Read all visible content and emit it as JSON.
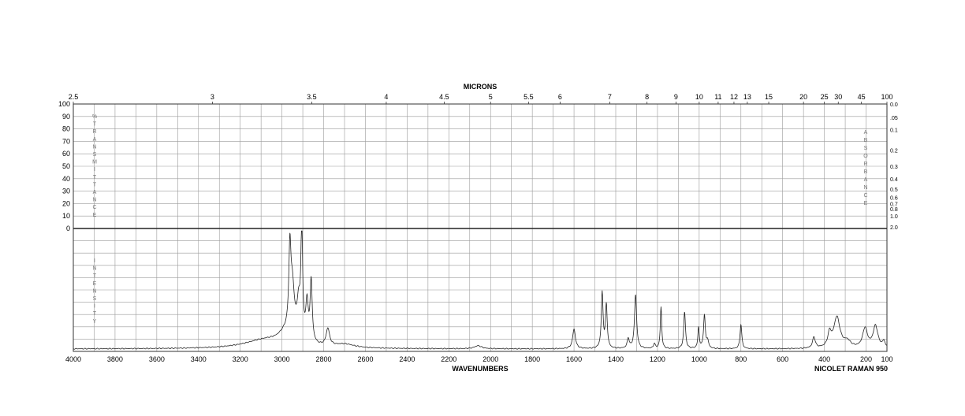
{
  "chart_data": {
    "type": "line",
    "title": "",
    "top_axis_label": "MICRONS",
    "xlabel": "WAVENUMBERS",
    "instrument_label": "NICOLET RAMAN 950",
    "left_axis_top_label": "%TRANSMITTANCE",
    "left_axis_bottom_label": "INTENSITY",
    "right_axis_label": "ABSORBANCE",
    "xlim": [
      4000,
      100
    ],
    "x_ticks": [
      4000,
      3800,
      3600,
      3400,
      3200,
      3000,
      2800,
      2600,
      2400,
      2200,
      2000,
      1800,
      1600,
      1400,
      1200,
      1000,
      800,
      600,
      400,
      200,
      100
    ],
    "micron_ticks": [
      "2.5",
      "3",
      "3.5",
      "4",
      "4.5",
      "5",
      "5.5",
      "6",
      "7",
      "8",
      "9",
      "10",
      "11",
      "12",
      "13",
      "15",
      "20",
      "25",
      "30",
      "45",
      "100"
    ],
    "transmittance_ticks": [
      100,
      90,
      80,
      70,
      60,
      50,
      40,
      30,
      20,
      10,
      0
    ],
    "absorbance_ticks": [
      "0.0",
      ".05",
      "0.1",
      "0.2",
      "0.3",
      "0.4",
      "0.5",
      "0.6",
      "0.7",
      "0.8",
      "1.0",
      "2.0"
    ],
    "grid": true,
    "series": [
      {
        "values_relative_intensity": true,
        "baseline": 0.02,
        "peaks": [
          {
            "x": 3080,
            "y": 0.07,
            "w": 120
          },
          {
            "x": 2985,
            "y": 0.08,
            "w": 40
          },
          {
            "x": 2962,
            "y": 0.62,
            "w": 6
          },
          {
            "x": 2950,
            "y": 0.4,
            "w": 12
          },
          {
            "x": 2920,
            "y": 0.28,
            "w": 10
          },
          {
            "x": 2905,
            "y": 0.9,
            "w": 5
          },
          {
            "x": 2880,
            "y": 0.31,
            "w": 7
          },
          {
            "x": 2860,
            "y": 0.5,
            "w": 6
          },
          {
            "x": 2780,
            "y": 0.14,
            "w": 10
          },
          {
            "x": 2700,
            "y": 0.03,
            "w": 60
          },
          {
            "x": 2060,
            "y": 0.025,
            "w": 20
          },
          {
            "x": 1600,
            "y": 0.16,
            "w": 8
          },
          {
            "x": 1465,
            "y": 0.45,
            "w": 5
          },
          {
            "x": 1445,
            "y": 0.35,
            "w": 5
          },
          {
            "x": 1340,
            "y": 0.08,
            "w": 6
          },
          {
            "x": 1305,
            "y": 0.44,
            "w": 6
          },
          {
            "x": 1215,
            "y": 0.04,
            "w": 5
          },
          {
            "x": 1183,
            "y": 0.34,
            "w": 4
          },
          {
            "x": 1070,
            "y": 0.3,
            "w": 5
          },
          {
            "x": 1003,
            "y": 0.17,
            "w": 4
          },
          {
            "x": 975,
            "y": 0.27,
            "w": 5
          },
          {
            "x": 960,
            "y": 0.06,
            "w": 6
          },
          {
            "x": 800,
            "y": 0.2,
            "w": 5
          },
          {
            "x": 450,
            "y": 0.09,
            "w": 8
          },
          {
            "x": 375,
            "y": 0.11,
            "w": 10
          },
          {
            "x": 340,
            "y": 0.25,
            "w": 18
          },
          {
            "x": 290,
            "y": 0.05,
            "w": 20
          },
          {
            "x": 205,
            "y": 0.16,
            "w": 14
          },
          {
            "x": 155,
            "y": 0.18,
            "w": 14
          },
          {
            "x": 115,
            "y": 0.05,
            "w": 8
          }
        ]
      }
    ]
  }
}
